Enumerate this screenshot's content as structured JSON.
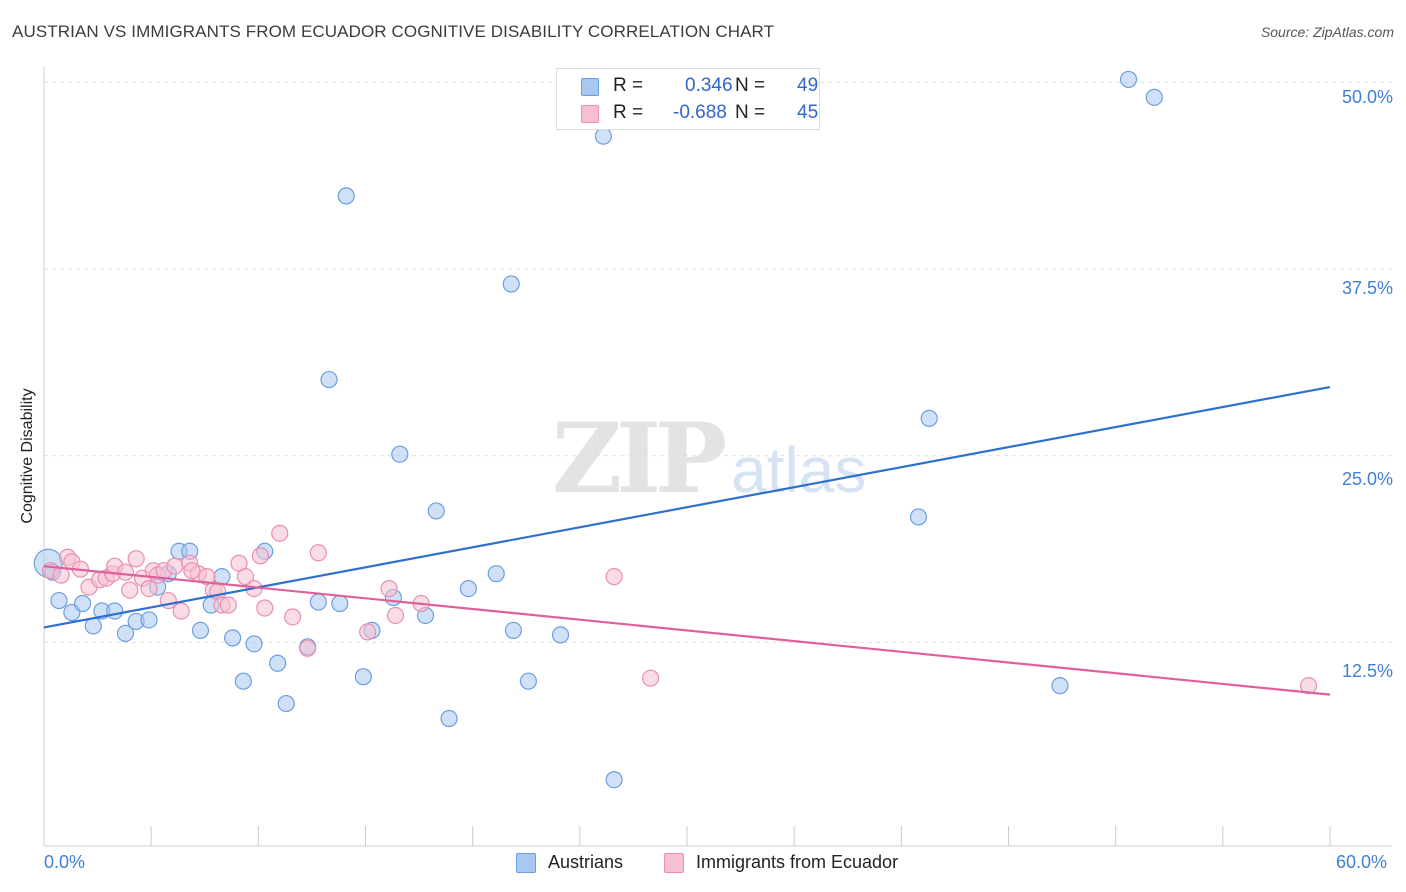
{
  "title": "AUSTRIAN VS IMMIGRANTS FROM ECUADOR COGNITIVE DISABILITY CORRELATION CHART",
  "source": "Source: ZipAtlas.com",
  "watermark": {
    "zip": "ZIP",
    "atlas": "atlas"
  },
  "colors": {
    "blue_fill": "#a9c8f0",
    "blue_stroke": "#6b9fe0",
    "blue_line": "#2f6fd0",
    "pink_fill": "#f6bfd2",
    "pink_stroke": "#ea8fb0",
    "pink_line": "#e0609a",
    "tick_text": "#3f7fd6",
    "grid": "#dddddd"
  },
  "stats": [
    {
      "r_label": "R =",
      "r_value": "0.346",
      "n_label": "N =",
      "n_value": "49"
    },
    {
      "r_label": "R =",
      "r_value": "-0.688",
      "n_label": "N =",
      "n_value": "45"
    }
  ],
  "legend": {
    "series_a": "Austrians",
    "series_b": "Immigrants from Ecuador"
  },
  "axes": {
    "x_min_label": "0.0%",
    "x_max_label": "60.0%",
    "y_ticks": [
      "50.0%",
      "37.5%",
      "25.0%",
      "12.5%"
    ],
    "y_label": "Cognitive Disability"
  },
  "chart_data": {
    "type": "scatter",
    "title": "AUSTRIAN VS IMMIGRANTS FROM ECUADOR COGNITIVE DISABILITY CORRELATION CHART",
    "xlabel": "",
    "ylabel": "Cognitive Disability",
    "xlim": [
      0,
      60
    ],
    "ylim": [
      0,
      51.3
    ],
    "y_gridlines": [
      12.5,
      25.0,
      37.5,
      50.0
    ],
    "legend_position": "bottom",
    "series": [
      {
        "name": "Austrians",
        "r": 0.346,
        "n": 49,
        "trend": {
          "x": [
            0,
            60
          ],
          "y": [
            13.5,
            29.6
          ]
        },
        "points": [
          [
            0.2,
            17.8
          ],
          [
            0.4,
            17.2
          ],
          [
            0.7,
            15.3
          ],
          [
            1.3,
            14.5
          ],
          [
            1.8,
            15.1
          ],
          [
            2.3,
            13.6
          ],
          [
            2.7,
            14.6
          ],
          [
            3.3,
            14.6
          ],
          [
            3.8,
            13.1
          ],
          [
            4.3,
            13.9
          ],
          [
            4.9,
            14.0
          ],
          [
            5.3,
            16.2
          ],
          [
            5.8,
            17.1
          ],
          [
            6.3,
            18.6
          ],
          [
            6.8,
            18.6
          ],
          [
            7.3,
            13.3
          ],
          [
            7.8,
            15.0
          ],
          [
            8.3,
            16.9
          ],
          [
            8.8,
            12.8
          ],
          [
            9.3,
            9.9
          ],
          [
            9.8,
            12.4
          ],
          [
            10.3,
            18.6
          ],
          [
            10.9,
            11.1
          ],
          [
            11.3,
            8.4
          ],
          [
            12.3,
            12.2
          ],
          [
            12.8,
            15.2
          ],
          [
            13.3,
            30.1
          ],
          [
            13.8,
            15.1
          ],
          [
            14.1,
            42.4
          ],
          [
            14.9,
            10.2
          ],
          [
            15.3,
            13.3
          ],
          [
            16.3,
            15.5
          ],
          [
            16.6,
            25.1
          ],
          [
            17.8,
            14.3
          ],
          [
            18.3,
            21.3
          ],
          [
            18.9,
            7.4
          ],
          [
            19.8,
            16.1
          ],
          [
            21.1,
            17.1
          ],
          [
            21.8,
            36.5
          ],
          [
            21.9,
            13.3
          ],
          [
            22.6,
            9.9
          ],
          [
            24.1,
            13.0
          ],
          [
            26.1,
            46.4
          ],
          [
            26.6,
            3.3
          ],
          [
            40.8,
            20.9
          ],
          [
            41.3,
            27.5
          ],
          [
            47.4,
            9.6
          ],
          [
            50.6,
            50.2
          ],
          [
            51.8,
            49.0
          ]
        ]
      },
      {
        "name": "Immigrants from Ecuador",
        "r": -0.688,
        "n": 45,
        "trend": {
          "x": [
            0,
            60
          ],
          "y": [
            17.6,
            9.0
          ]
        },
        "points": [
          [
            0.3,
            17.3
          ],
          [
            0.8,
            17.0
          ],
          [
            1.1,
            18.2
          ],
          [
            1.3,
            17.9
          ],
          [
            1.7,
            17.4
          ],
          [
            2.1,
            16.2
          ],
          [
            2.6,
            16.7
          ],
          [
            2.9,
            16.8
          ],
          [
            3.2,
            17.1
          ],
          [
            3.3,
            17.6
          ],
          [
            3.8,
            17.2
          ],
          [
            4.0,
            16.0
          ],
          [
            4.3,
            18.1
          ],
          [
            4.6,
            16.8
          ],
          [
            4.9,
            16.1
          ],
          [
            5.1,
            17.3
          ],
          [
            5.3,
            17.0
          ],
          [
            5.6,
            17.3
          ],
          [
            5.8,
            15.3
          ],
          [
            6.1,
            17.6
          ],
          [
            6.4,
            14.6
          ],
          [
            6.8,
            17.8
          ],
          [
            7.2,
            17.1
          ],
          [
            7.6,
            16.9
          ],
          [
            7.9,
            16.0
          ],
          [
            8.1,
            15.9
          ],
          [
            8.3,
            15.0
          ],
          [
            8.6,
            15.0
          ],
          [
            9.1,
            17.8
          ],
          [
            9.4,
            16.9
          ],
          [
            9.8,
            16.1
          ],
          [
            10.1,
            18.3
          ],
          [
            10.3,
            14.8
          ],
          [
            11.0,
            19.8
          ],
          [
            11.6,
            14.2
          ],
          [
            12.3,
            12.1
          ],
          [
            12.8,
            18.5
          ],
          [
            15.1,
            13.2
          ],
          [
            16.1,
            16.1
          ],
          [
            16.4,
            14.3
          ],
          [
            17.6,
            15.1
          ],
          [
            26.6,
            16.9
          ],
          [
            28.3,
            10.1
          ],
          [
            59.0,
            9.6
          ],
          [
            6.9,
            17.3
          ]
        ]
      }
    ]
  }
}
